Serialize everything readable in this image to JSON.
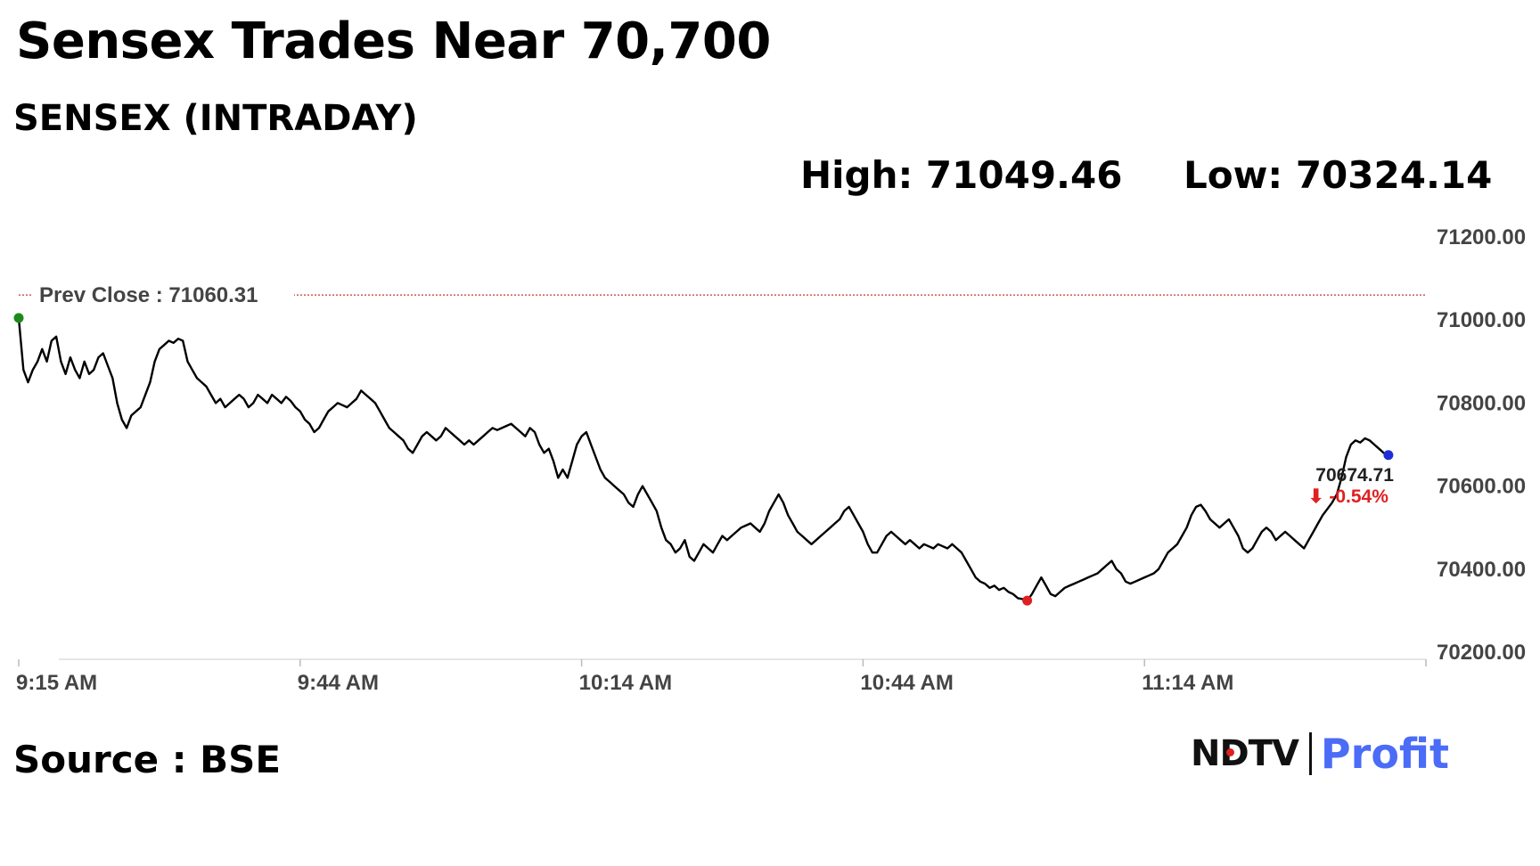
{
  "header": {
    "title": "Sensex Trades Near 70,700",
    "subtitle": "SENSEX (INTRADAY)",
    "high": "High: 71049.46",
    "low": "Low: 70324.14"
  },
  "footer": {
    "source": "Source : BSE",
    "logo_left": "NDTV",
    "logo_right": "Profit"
  },
  "colors": {
    "line": "#000000",
    "prev_close_line": "#c0392b",
    "start_marker": "#1a8a1a",
    "low_marker": "#e02020",
    "last_marker": "#1f2fd6",
    "change_negative": "#e02020",
    "logo_brand": "#4a6cf7"
  },
  "chart_data": {
    "type": "line",
    "title": "",
    "xlabel": "",
    "ylabel": "",
    "ylim": [
      70200,
      71200
    ],
    "yticks": [
      71200,
      71000,
      70800,
      70600,
      70400,
      70200
    ],
    "ytick_labels": [
      "71200.00",
      "71000.00",
      "70800.00",
      "70600.00",
      "70400.00",
      "70200.00"
    ],
    "xlim_minutes": [
      0,
      150
    ],
    "xticks_minutes": [
      0,
      30,
      60,
      90,
      120
    ],
    "xtick_labels": [
      "9:15 AM",
      "9:44 AM",
      "10:14 AM",
      "10:44 AM",
      "11:14 AM"
    ],
    "prev_close": {
      "value": 71060.31,
      "label": "Prev Close : 71060.31"
    },
    "last": {
      "value": 70674.71,
      "label": "70674.71",
      "change": "-0.54%",
      "arrow": "⬇"
    },
    "low_point": {
      "minute": 107.5,
      "value": 70324.14
    },
    "x_unit": "minutes since 9:15 AM",
    "series": [
      {
        "points": [
          [
            0,
            71005
          ],
          [
            0.5,
            70880
          ],
          [
            1,
            70850
          ],
          [
            1.5,
            70880
          ],
          [
            2,
            70900
          ],
          [
            2.5,
            70930
          ],
          [
            3,
            70900
          ],
          [
            3.5,
            70950
          ],
          [
            4,
            70960
          ],
          [
            4.5,
            70900
          ],
          [
            5,
            70870
          ],
          [
            5.5,
            70910
          ],
          [
            6,
            70880
          ],
          [
            6.5,
            70860
          ],
          [
            7,
            70900
          ],
          [
            7.5,
            70870
          ],
          [
            8,
            70880
          ],
          [
            8.5,
            70910
          ],
          [
            9,
            70920
          ],
          [
            9.5,
            70890
          ],
          [
            10,
            70860
          ],
          [
            10.5,
            70800
          ],
          [
            11,
            70760
          ],
          [
            11.5,
            70740
          ],
          [
            12,
            70770
          ],
          [
            12.5,
            70780
          ],
          [
            13,
            70790
          ],
          [
            13.5,
            70820
          ],
          [
            14,
            70850
          ],
          [
            14.5,
            70900
          ],
          [
            15,
            70930
          ],
          [
            15.5,
            70940
          ],
          [
            16,
            70950
          ],
          [
            16.5,
            70945
          ],
          [
            17,
            70955
          ],
          [
            17.5,
            70950
          ],
          [
            18,
            70900
          ],
          [
            18.5,
            70880
          ],
          [
            19,
            70860
          ],
          [
            19.5,
            70850
          ],
          [
            20,
            70840
          ],
          [
            20.5,
            70820
          ],
          [
            21,
            70800
          ],
          [
            21.5,
            70810
          ],
          [
            22,
            70790
          ],
          [
            22.5,
            70800
          ],
          [
            23,
            70810
          ],
          [
            23.5,
            70820
          ],
          [
            24,
            70810
          ],
          [
            24.5,
            70790
          ],
          [
            25,
            70800
          ],
          [
            25.5,
            70820
          ],
          [
            26,
            70810
          ],
          [
            26.5,
            70800
          ],
          [
            27,
            70820
          ],
          [
            27.5,
            70810
          ],
          [
            28,
            70800
          ],
          [
            28.5,
            70815
          ],
          [
            29,
            70805
          ],
          [
            29.5,
            70790
          ],
          [
            30,
            70780
          ],
          [
            30.5,
            70760
          ],
          [
            31,
            70750
          ],
          [
            31.5,
            70730
          ],
          [
            32,
            70740
          ],
          [
            32.5,
            70760
          ],
          [
            33,
            70780
          ],
          [
            33.5,
            70790
          ],
          [
            34,
            70800
          ],
          [
            34.5,
            70795
          ],
          [
            35,
            70790
          ],
          [
            35.5,
            70800
          ],
          [
            36,
            70810
          ],
          [
            36.5,
            70830
          ],
          [
            37,
            70820
          ],
          [
            37.5,
            70810
          ],
          [
            38,
            70800
          ],
          [
            38.5,
            70780
          ],
          [
            39,
            70760
          ],
          [
            39.5,
            70740
          ],
          [
            40,
            70730
          ],
          [
            40.5,
            70720
          ],
          [
            41,
            70710
          ],
          [
            41.5,
            70690
          ],
          [
            42,
            70680
          ],
          [
            42.5,
            70700
          ],
          [
            43,
            70720
          ],
          [
            43.5,
            70730
          ],
          [
            44,
            70720
          ],
          [
            44.5,
            70710
          ],
          [
            45,
            70720
          ],
          [
            45.5,
            70740
          ],
          [
            46,
            70730
          ],
          [
            46.5,
            70720
          ],
          [
            47,
            70710
          ],
          [
            47.5,
            70700
          ],
          [
            48,
            70710
          ],
          [
            48.5,
            70700
          ],
          [
            49,
            70710
          ],
          [
            49.5,
            70720
          ],
          [
            50,
            70730
          ],
          [
            50.5,
            70740
          ],
          [
            51,
            70735
          ],
          [
            51.5,
            70740
          ],
          [
            52,
            70745
          ],
          [
            52.5,
            70750
          ],
          [
            53,
            70740
          ],
          [
            53.5,
            70730
          ],
          [
            54,
            70720
          ],
          [
            54.5,
            70740
          ],
          [
            55,
            70730
          ],
          [
            55.5,
            70700
          ],
          [
            56,
            70680
          ],
          [
            56.5,
            70690
          ],
          [
            57,
            70660
          ],
          [
            57.5,
            70620
          ],
          [
            58,
            70640
          ],
          [
            58.5,
            70620
          ],
          [
            59,
            70660
          ],
          [
            59.5,
            70700
          ],
          [
            60,
            70720
          ],
          [
            60.5,
            70730
          ],
          [
            61,
            70700
          ],
          [
            61.5,
            70670
          ],
          [
            62,
            70640
          ],
          [
            62.5,
            70620
          ],
          [
            63,
            70610
          ],
          [
            63.5,
            70600
          ],
          [
            64,
            70590
          ],
          [
            64.5,
            70580
          ],
          [
            65,
            70560
          ],
          [
            65.5,
            70550
          ],
          [
            66,
            70580
          ],
          [
            66.5,
            70600
          ],
          [
            67,
            70580
          ],
          [
            67.5,
            70560
          ],
          [
            68,
            70540
          ],
          [
            68.5,
            70500
          ],
          [
            69,
            70470
          ],
          [
            69.5,
            70460
          ],
          [
            70,
            70440
          ],
          [
            70.5,
            70450
          ],
          [
            71,
            70470
          ],
          [
            71.5,
            70430
          ],
          [
            72,
            70420
          ],
          [
            72.5,
            70440
          ],
          [
            73,
            70460
          ],
          [
            73.5,
            70450
          ],
          [
            74,
            70440
          ],
          [
            74.5,
            70460
          ],
          [
            75,
            70480
          ],
          [
            75.5,
            70470
          ],
          [
            76,
            70480
          ],
          [
            76.5,
            70490
          ],
          [
            77,
            70500
          ],
          [
            77.5,
            70505
          ],
          [
            78,
            70510
          ],
          [
            78.5,
            70500
          ],
          [
            79,
            70490
          ],
          [
            79.5,
            70510
          ],
          [
            80,
            70540
          ],
          [
            80.5,
            70560
          ],
          [
            81,
            70580
          ],
          [
            81.5,
            70560
          ],
          [
            82,
            70530
          ],
          [
            82.5,
            70510
          ],
          [
            83,
            70490
          ],
          [
            83.5,
            70480
          ],
          [
            84,
            70470
          ],
          [
            84.5,
            70460
          ],
          [
            85,
            70470
          ],
          [
            85.5,
            70480
          ],
          [
            86,
            70490
          ],
          [
            86.5,
            70500
          ],
          [
            87,
            70510
          ],
          [
            87.5,
            70520
          ],
          [
            88,
            70540
          ],
          [
            88.5,
            70550
          ],
          [
            89,
            70530
          ],
          [
            89.5,
            70510
          ],
          [
            90,
            70490
          ],
          [
            90.5,
            70460
          ],
          [
            91,
            70440
          ],
          [
            91.5,
            70440
          ],
          [
            92,
            70460
          ],
          [
            92.5,
            70480
          ],
          [
            93,
            70490
          ],
          [
            93.5,
            70480
          ],
          [
            94,
            70470
          ],
          [
            94.5,
            70460
          ],
          [
            95,
            70470
          ],
          [
            95.5,
            70460
          ],
          [
            96,
            70450
          ],
          [
            96.5,
            70460
          ],
          [
            97,
            70455
          ],
          [
            97.5,
            70450
          ],
          [
            98,
            70460
          ],
          [
            98.5,
            70455
          ],
          [
            99,
            70450
          ],
          [
            99.5,
            70460
          ],
          [
            100,
            70450
          ],
          [
            100.5,
            70440
          ],
          [
            101,
            70420
          ],
          [
            101.5,
            70400
          ],
          [
            102,
            70380
          ],
          [
            102.5,
            70370
          ],
          [
            103,
            70365
          ],
          [
            103.5,
            70355
          ],
          [
            104,
            70360
          ],
          [
            104.5,
            70350
          ],
          [
            105,
            70355
          ],
          [
            105.5,
            70345
          ],
          [
            106,
            70340
          ],
          [
            106.5,
            70330
          ],
          [
            107,
            70328
          ],
          [
            107.5,
            70324.14
          ],
          [
            108,
            70340
          ],
          [
            108.5,
            70360
          ],
          [
            109,
            70380
          ],
          [
            109.5,
            70360
          ],
          [
            110,
            70340
          ],
          [
            110.5,
            70335
          ],
          [
            111,
            70345
          ],
          [
            111.5,
            70355
          ],
          [
            112,
            70360
          ],
          [
            112.5,
            70365
          ],
          [
            113,
            70370
          ],
          [
            113.5,
            70375
          ],
          [
            114,
            70380
          ],
          [
            114.5,
            70385
          ],
          [
            115,
            70390
          ],
          [
            115.5,
            70400
          ],
          [
            116,
            70410
          ],
          [
            116.5,
            70420
          ],
          [
            117,
            70400
          ],
          [
            117.5,
            70390
          ],
          [
            118,
            70370
          ],
          [
            118.5,
            70365
          ],
          [
            119,
            70370
          ],
          [
            119.5,
            70375
          ],
          [
            120,
            70380
          ],
          [
            120.5,
            70385
          ],
          [
            121,
            70390
          ],
          [
            121.5,
            70400
          ],
          [
            122,
            70420
          ],
          [
            122.5,
            70440
          ],
          [
            123,
            70450
          ],
          [
            123.5,
            70460
          ],
          [
            124,
            70480
          ],
          [
            124.5,
            70500
          ],
          [
            125,
            70530
          ],
          [
            125.5,
            70550
          ],
          [
            126,
            70555
          ],
          [
            126.5,
            70540
          ],
          [
            127,
            70520
          ],
          [
            127.5,
            70510
          ],
          [
            128,
            70500
          ],
          [
            128.5,
            70510
          ],
          [
            129,
            70520
          ],
          [
            129.5,
            70500
          ],
          [
            130,
            70480
          ],
          [
            130.5,
            70450
          ],
          [
            131,
            70440
          ],
          [
            131.5,
            70450
          ],
          [
            132,
            70470
          ],
          [
            132.5,
            70490
          ],
          [
            133,
            70500
          ],
          [
            133.5,
            70490
          ],
          [
            134,
            70470
          ],
          [
            134.5,
            70480
          ],
          [
            135,
            70490
          ],
          [
            135.5,
            70480
          ],
          [
            136,
            70470
          ],
          [
            136.5,
            70460
          ],
          [
            137,
            70450
          ],
          [
            137.5,
            70470
          ],
          [
            138,
            70490
          ],
          [
            138.5,
            70510
          ],
          [
            139,
            70530
          ],
          [
            139.5,
            70545
          ],
          [
            140,
            70560
          ],
          [
            140.5,
            70580
          ],
          [
            141,
            70620
          ],
          [
            141.5,
            70670
          ],
          [
            142,
            70700
          ],
          [
            142.5,
            70710
          ],
          [
            143,
            70705
          ],
          [
            143.5,
            70715
          ],
          [
            144,
            70710
          ],
          [
            144.5,
            70700
          ],
          [
            145,
            70690
          ],
          [
            145.5,
            70680
          ],
          [
            146,
            70674.71
          ]
        ]
      }
    ]
  }
}
